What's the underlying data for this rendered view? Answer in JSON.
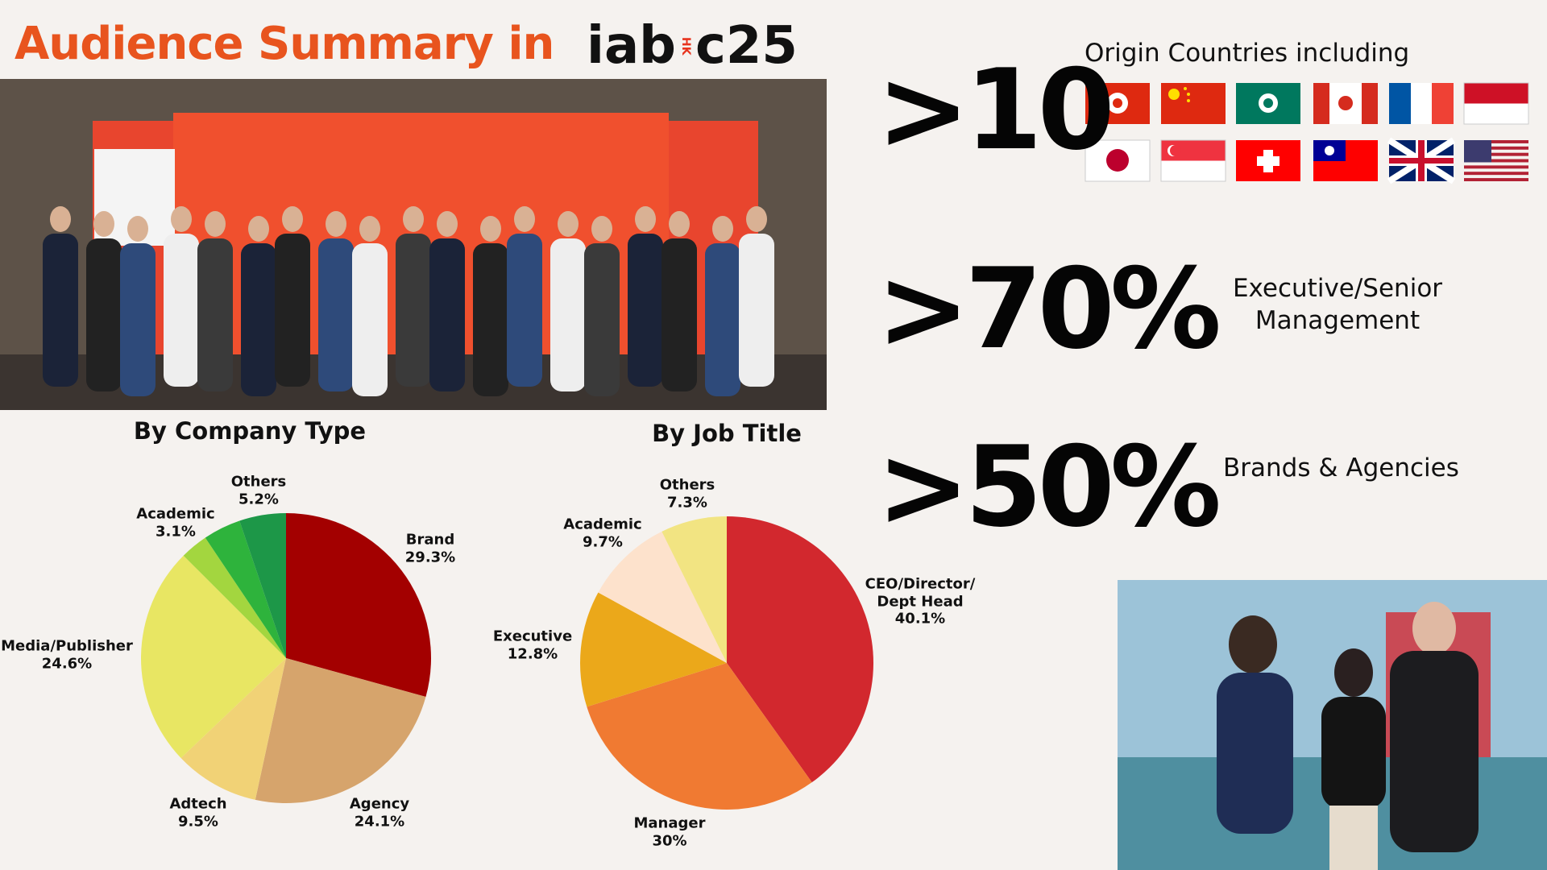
{
  "header": {
    "title": "Audience Summary in",
    "logo": [
      "iab",
      "HK",
      "c25"
    ]
  },
  "stats": [
    {
      "figure": ">10",
      "text": "Origin Countries including"
    },
    {
      "figure": ">70%",
      "text": "Executive/Senior Management"
    },
    {
      "figure": ">50%",
      "text": "Brands & Agencies"
    }
  ],
  "chart_data": [
    {
      "type": "pie",
      "title": "By Company Type",
      "categories": [
        "Brand",
        "Agency",
        "Adtech",
        "Media/Publisher",
        "Academic",
        null,
        "Others"
      ],
      "values": [
        29.3,
        24.1,
        9.5,
        24.6,
        3.1,
        4.2,
        5.2
      ],
      "value_labels": [
        "29.3%",
        "24.1%",
        "9.5%",
        "24.6%",
        "3.1%",
        null,
        "5.2%"
      ],
      "colors": [
        "#a30000",
        "#d6a46c",
        "#f1d276",
        "#e8e663",
        "#a3d63f",
        "#2eb33c",
        "#1d9748"
      ]
    },
    {
      "type": "pie",
      "title": "By Job Title",
      "categories": [
        "CEO/Director/ Dept Head",
        "Manager",
        "Executive",
        "Academic",
        "Others"
      ],
      "values": [
        40.1,
        30,
        12.8,
        9.7,
        7.3
      ],
      "value_labels": [
        "40.1%",
        "30%",
        "12.8%",
        "9.7%",
        "7.3%"
      ],
      "colors": [
        "#d2282e",
        "#f07a32",
        "#eba81a",
        "#fde2cc",
        "#f2e482"
      ]
    }
  ]
}
